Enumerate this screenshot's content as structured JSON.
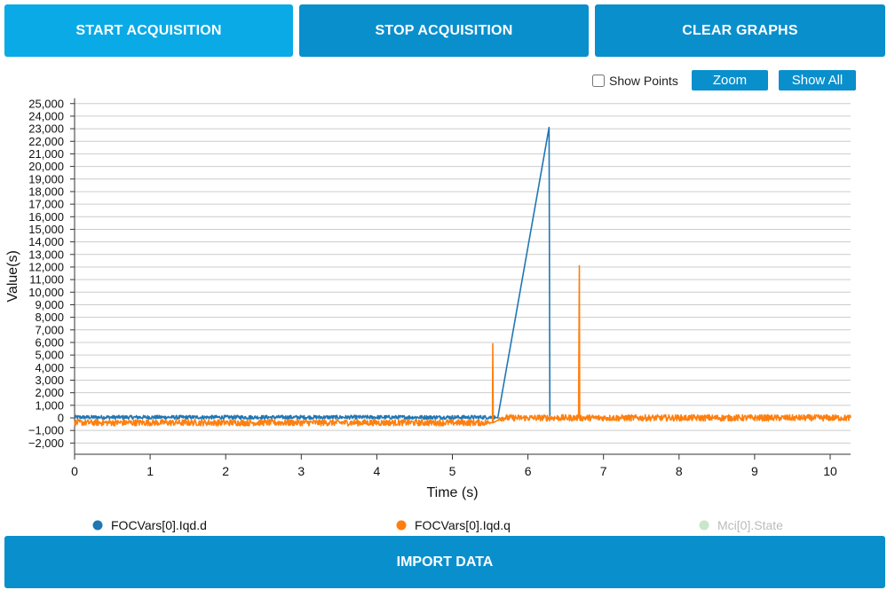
{
  "buttons": {
    "start": "START ACQUISITION",
    "stop": "STOP ACQUISITION",
    "clear": "CLEAR GRAPHS",
    "zoom": "Zoom",
    "show_all": "Show All",
    "import": "IMPORT DATA"
  },
  "options": {
    "show_points_label": "Show Points",
    "show_points_checked": false
  },
  "colors": {
    "start_button": "#0aaae6",
    "button": "#0a8fcd",
    "series_d": "#1f77b4",
    "series_q": "#ff7f0e",
    "series_state": "#c8e6c9",
    "grid": "#cccccc"
  },
  "chart_data": {
    "type": "line",
    "xlabel": "Time (s)",
    "ylabel": "Value(s)",
    "xlim": [
      0,
      10.27
    ],
    "ylim": [
      -2000,
      25000
    ],
    "x_ticks": [
      0,
      1,
      2,
      3,
      4,
      5,
      6,
      7,
      8,
      9,
      10
    ],
    "y_ticks": [
      -2000,
      -1000,
      0,
      1000,
      2000,
      3000,
      4000,
      5000,
      6000,
      7000,
      8000,
      9000,
      10000,
      11000,
      12000,
      13000,
      14000,
      15000,
      16000,
      17000,
      18000,
      19000,
      20000,
      21000,
      22000,
      23000,
      24000,
      25000
    ],
    "y_tick_labels": [
      "−2,000",
      "−1,000",
      "0",
      "1,000",
      "2,000",
      "3,000",
      "4,000",
      "5,000",
      "6,000",
      "7,000",
      "8,000",
      "9,000",
      "10,000",
      "11,000",
      "12,000",
      "13,000",
      "14,000",
      "15,000",
      "16,000",
      "17,000",
      "18,000",
      "19,000",
      "20,000",
      "21,000",
      "22,000",
      "23,000",
      "24,000",
      "25,000"
    ],
    "grid": "horizontal",
    "legend_position": "bottom",
    "series": [
      {
        "name": "FOCVars[0].Iqd.d",
        "color": "#1f77b4",
        "noise": 150,
        "x": [
          0,
          5.57,
          5.6,
          6.28,
          6.29,
          6.3
        ],
        "y": [
          50,
          50,
          0,
          23100,
          0,
          0
        ],
        "visible": true
      },
      {
        "name": "FOCVars[0].Iqd.q",
        "color": "#ff7f0e",
        "noise": 250,
        "x": [
          0,
          5.5,
          5.53,
          5.535,
          5.54,
          5.6,
          5.61,
          6.67,
          6.68,
          6.685,
          6.69,
          10.27
        ],
        "y": [
          -380,
          -380,
          -380,
          5900,
          -380,
          -200,
          0,
          0,
          12100,
          0,
          0,
          0
        ],
        "visible": true
      },
      {
        "name": "Mci[0].State",
        "color": "#c8e6c9",
        "visible": false
      }
    ]
  }
}
